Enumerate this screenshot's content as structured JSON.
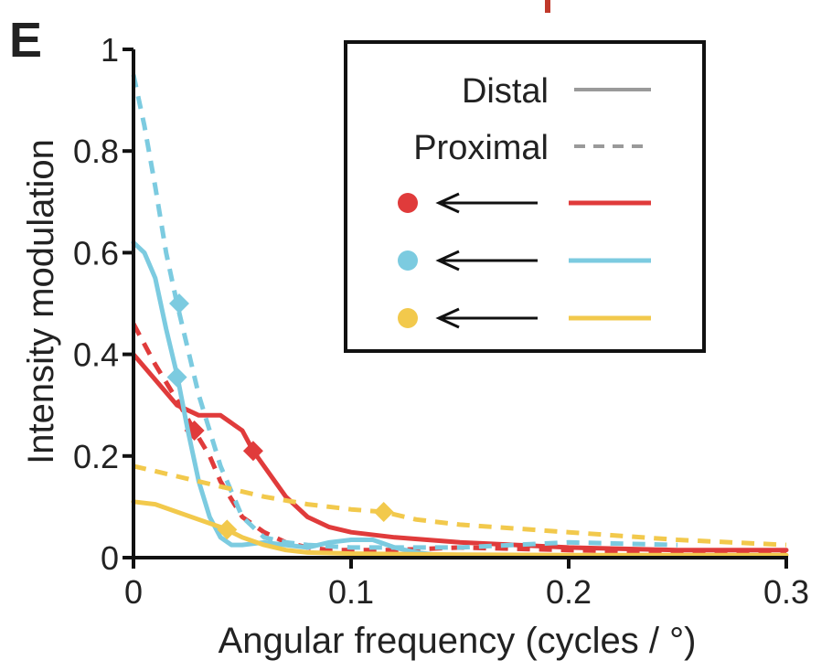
{
  "chart_data": {
    "type": "line",
    "panel_label": "E",
    "xlabel": "Angular frequency (cycles / °)",
    "ylabel": "Intensity modulation",
    "xlim": [
      0,
      0.3
    ],
    "ylim": [
      0,
      1
    ],
    "xticks": [
      0,
      0.1,
      0.2,
      0.3
    ],
    "xtick_labels": [
      "0",
      "0.1",
      "0.2",
      "0.3"
    ],
    "yticks": [
      0,
      0.2,
      0.4,
      0.6,
      0.8,
      1
    ],
    "ytick_labels": [
      "0",
      "0.2",
      "0.4",
      "0.6",
      "0.8",
      "1"
    ],
    "grid": false,
    "legend": {
      "placement": "top-right",
      "distal_label": "Distal",
      "proximal_label": "Proximal",
      "colors": [
        "#e03b3b",
        "#7ccbe0",
        "#f2c94c"
      ],
      "style_color": "#9a9a9a"
    },
    "series": [
      {
        "color": "#e03b3b",
        "style": "solid",
        "x": [
          0,
          0.01,
          0.02,
          0.03,
          0.04,
          0.05,
          0.055,
          0.06,
          0.07,
          0.08,
          0.09,
          0.1,
          0.12,
          0.15,
          0.2,
          0.25,
          0.3
        ],
        "y": [
          0.4,
          0.35,
          0.3,
          0.28,
          0.28,
          0.25,
          0.21,
          0.18,
          0.12,
          0.08,
          0.06,
          0.05,
          0.04,
          0.03,
          0.02,
          0.015,
          0.015
        ],
        "markers": [
          {
            "x": 0.055,
            "y": 0.21
          }
        ]
      },
      {
        "color": "#e03b3b",
        "style": "dashed",
        "x": [
          0,
          0.01,
          0.02,
          0.028,
          0.035,
          0.04,
          0.05,
          0.06,
          0.07,
          0.08,
          0.09,
          0.1,
          0.12,
          0.15,
          0.2,
          0.25,
          0.3
        ],
        "y": [
          0.46,
          0.38,
          0.31,
          0.25,
          0.2,
          0.15,
          0.08,
          0.05,
          0.03,
          0.02,
          0.015,
          0.015,
          0.015,
          0.02,
          0.015,
          0.01,
          0.01
        ],
        "markers": [
          {
            "x": 0.028,
            "y": 0.25
          }
        ]
      },
      {
        "color": "#7ccbe0",
        "style": "solid",
        "x": [
          0,
          0.005,
          0.01,
          0.015,
          0.02,
          0.025,
          0.03,
          0.035,
          0.04,
          0.045,
          0.05,
          0.06,
          0.07,
          0.08,
          0.09,
          0.1,
          0.11,
          0.12,
          0.13,
          0.14
        ],
        "y": [
          0.62,
          0.6,
          0.55,
          0.45,
          0.36,
          0.25,
          0.15,
          0.08,
          0.04,
          0.025,
          0.025,
          0.03,
          0.025,
          0.02,
          0.03,
          0.035,
          0.035,
          0.02,
          0.01,
          0.005
        ],
        "markers": [
          {
            "x": 0.02,
            "y": 0.355
          }
        ]
      },
      {
        "color": "#7ccbe0",
        "style": "dashed",
        "x": [
          0,
          0.005,
          0.01,
          0.015,
          0.02,
          0.025,
          0.03,
          0.04,
          0.05,
          0.06,
          0.07,
          0.08,
          0.1,
          0.15,
          0.2,
          0.25
        ],
        "y": [
          0.95,
          0.85,
          0.73,
          0.6,
          0.5,
          0.41,
          0.32,
          0.18,
          0.08,
          0.04,
          0.03,
          0.025,
          0.02,
          0.02,
          0.03,
          0.025
        ],
        "markers": [
          {
            "x": 0.021,
            "y": 0.5
          }
        ]
      },
      {
        "color": "#f2c94c",
        "style": "solid",
        "x": [
          0,
          0.01,
          0.02,
          0.03,
          0.04,
          0.043,
          0.05,
          0.06,
          0.07,
          0.08,
          0.1,
          0.15,
          0.2,
          0.25,
          0.3
        ],
        "y": [
          0.11,
          0.105,
          0.09,
          0.075,
          0.06,
          0.055,
          0.04,
          0.025,
          0.015,
          0.01,
          0.008,
          0.006,
          0.005,
          0.005,
          0.005
        ],
        "markers": [
          {
            "x": 0.043,
            "y": 0.055
          }
        ]
      },
      {
        "color": "#f2c94c",
        "style": "dashed",
        "x": [
          0,
          0.02,
          0.04,
          0.06,
          0.08,
          0.1,
          0.115,
          0.13,
          0.15,
          0.2,
          0.25,
          0.3
        ],
        "y": [
          0.18,
          0.16,
          0.14,
          0.12,
          0.105,
          0.095,
          0.09,
          0.075,
          0.065,
          0.05,
          0.035,
          0.025
        ],
        "markers": [
          {
            "x": 0.115,
            "y": 0.09
          }
        ]
      }
    ]
  }
}
